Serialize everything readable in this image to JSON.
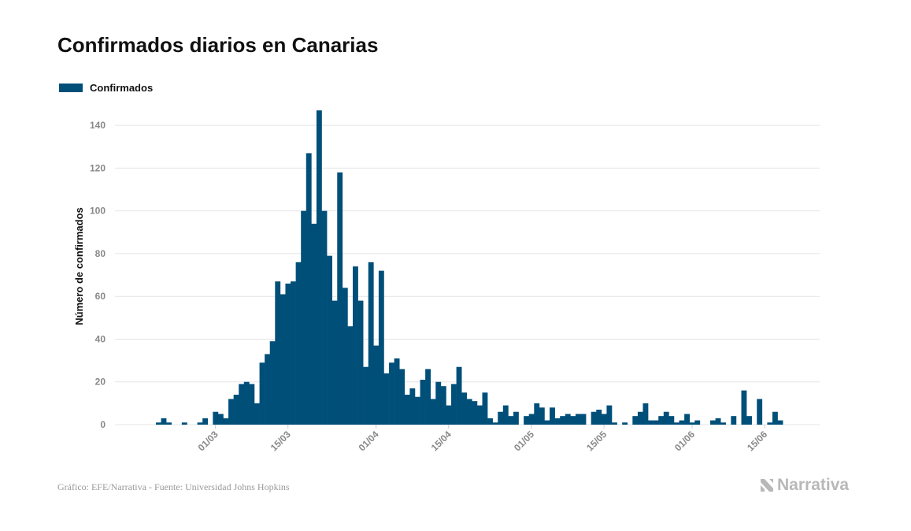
{
  "title": "Confirmados diarios en Canarias",
  "legend": {
    "label": "Confirmados"
  },
  "footer": {
    "source": "Gráfico: EFE/Narrativa - Fuente: Universidad Johns Hopkins",
    "brand": "Narrativa"
  },
  "colors": {
    "bar": "#004f79",
    "grid": "#e4e4e4",
    "tick_text": "#888888",
    "brand": "#b8b8b8"
  },
  "icons": {
    "brand_logo": "narrativa-n-logo-icon"
  },
  "chart_data": {
    "type": "bar",
    "ylabel": "Número de confirmados",
    "ylim": [
      0,
      150
    ],
    "yticks": [
      0,
      20,
      40,
      60,
      80,
      100,
      120,
      140
    ],
    "y_gridlines": true,
    "legend_position": "top-left",
    "x_start_date": "2020-02-17",
    "xticks": [
      "01/03",
      "15/03",
      "01/04",
      "15/04",
      "01/05",
      "15/05",
      "01/06",
      "15/06"
    ],
    "xtick_dates": [
      "2020-03-01",
      "2020-03-15",
      "2020-04-01",
      "2020-04-15",
      "2020-05-01",
      "2020-05-15",
      "2020-06-01",
      "2020-06-15"
    ],
    "series": [
      {
        "name": "Confirmados",
        "values": [
          0,
          0,
          1,
          3,
          1,
          0,
          0,
          1,
          0,
          0,
          1,
          3,
          0,
          6,
          5,
          3,
          12,
          14,
          19,
          20,
          19,
          10,
          29,
          33,
          39,
          67,
          61,
          66,
          67,
          76,
          100,
          127,
          94,
          147,
          100,
          79,
          58,
          118,
          64,
          46,
          74,
          58,
          27,
          76,
          37,
          72,
          24,
          29,
          31,
          26,
          14,
          17,
          13,
          21,
          26,
          12,
          20,
          18,
          9,
          19,
          27,
          15,
          12,
          11,
          9,
          15,
          3,
          1,
          6,
          9,
          4,
          6,
          0,
          4,
          5,
          10,
          8,
          2,
          8,
          3,
          4,
          5,
          4,
          5,
          5,
          0,
          6,
          7,
          5,
          9,
          1,
          0,
          1,
          0,
          4,
          6,
          10,
          2,
          2,
          4,
          6,
          4,
          1,
          2,
          5,
          1,
          2,
          0,
          0,
          2,
          3,
          1,
          0,
          4,
          0,
          16,
          4,
          0,
          12,
          0,
          1,
          6,
          2
        ]
      }
    ]
  }
}
